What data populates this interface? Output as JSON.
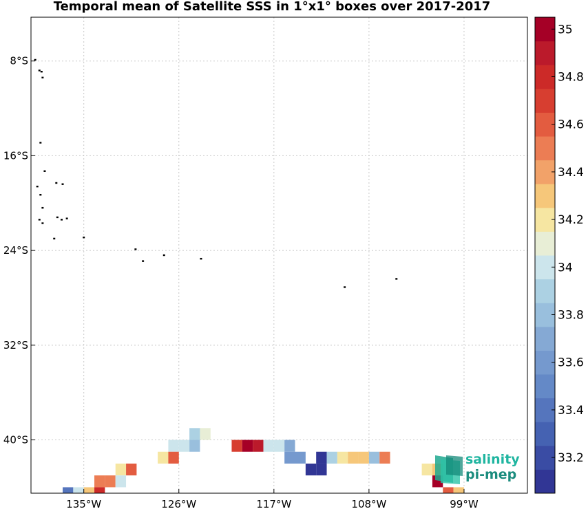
{
  "title": "Temporal mean of Satellite SSS in 1°x1° boxes over 2017-2017",
  "map": {
    "lon_range": [
      -140,
      -93
    ],
    "lat_range": [
      -44.5,
      -4.3
    ],
    "lon_ticks": [
      {
        "value": -135,
        "label": "135°W"
      },
      {
        "value": -126,
        "label": "126°W"
      },
      {
        "value": -117,
        "label": "117°W"
      },
      {
        "value": -108,
        "label": "108°W"
      },
      {
        "value": -99,
        "label": "99°W"
      }
    ],
    "lat_ticks": [
      {
        "value": -8,
        "label": "8°S"
      },
      {
        "value": -16,
        "label": "16°S"
      },
      {
        "value": -24,
        "label": "24°S"
      },
      {
        "value": -32,
        "label": "32°S"
      },
      {
        "value": -40,
        "label": "40°S"
      }
    ],
    "grid": "dotted",
    "islands": [
      [
        -139.6,
        -7.9
      ],
      [
        -139.2,
        -8.8
      ],
      [
        -139.0,
        -8.9
      ],
      [
        -138.9,
        -9.4
      ],
      [
        -139.1,
        -14.9
      ],
      [
        -138.7,
        -17.3
      ],
      [
        -137.6,
        -18.3
      ],
      [
        -137.0,
        -18.4
      ],
      [
        -139.4,
        -18.6
      ],
      [
        -139.1,
        -19.3
      ],
      [
        -138.9,
        -20.4
      ],
      [
        -139.2,
        -21.4
      ],
      [
        -138.9,
        -21.7
      ],
      [
        -137.5,
        -21.2
      ],
      [
        -137.1,
        -21.4
      ],
      [
        -136.6,
        -21.3
      ],
      [
        -137.8,
        -23.0
      ],
      [
        -135.0,
        -22.9
      ],
      [
        -130.1,
        -23.9
      ],
      [
        -129.4,
        -24.9
      ],
      [
        -127.4,
        -24.4
      ],
      [
        -123.9,
        -24.7
      ],
      [
        -110.3,
        -27.1
      ],
      [
        -105.4,
        -26.4
      ]
    ]
  },
  "chart_data": {
    "type": "heatmap",
    "title": "Temporal mean of Satellite SSS in 1°x1° boxes over 2017-2017",
    "xlabel": "",
    "ylabel": "",
    "cell_size_deg": 1,
    "value_range": [
      33.05,
      35.05
    ],
    "cells": [
      {
        "lon": -124.5,
        "lat": -39.5,
        "sss": 33.93
      },
      {
        "lon": -123.5,
        "lat": -39.5,
        "sss": 34.12
      },
      {
        "lon": -126.5,
        "lat": -40.5,
        "sss": 34.03
      },
      {
        "lon": -125.5,
        "lat": -40.5,
        "sss": 34.03
      },
      {
        "lon": -124.5,
        "lat": -40.5,
        "sss": 33.83
      },
      {
        "lon": -120.5,
        "lat": -40.5,
        "sss": 34.65
      },
      {
        "lon": -119.5,
        "lat": -40.5,
        "sss": 34.95
      },
      {
        "lon": -118.5,
        "lat": -40.5,
        "sss": 34.9
      },
      {
        "lon": -117.5,
        "lat": -40.5,
        "sss": 34.03
      },
      {
        "lon": -116.5,
        "lat": -40.5,
        "sss": 34.03
      },
      {
        "lon": -115.5,
        "lat": -40.5,
        "sss": 33.73
      },
      {
        "lon": -127.5,
        "lat": -41.5,
        "sss": 34.15
      },
      {
        "lon": -126.5,
        "lat": -41.5,
        "sss": 34.6
      },
      {
        "lon": -115.5,
        "lat": -41.5,
        "sss": 33.58
      },
      {
        "lon": -114.5,
        "lat": -41.5,
        "sss": 33.58
      },
      {
        "lon": -112.5,
        "lat": -41.5,
        "sss": 33.12
      },
      {
        "lon": -111.5,
        "lat": -41.5,
        "sss": 33.93
      },
      {
        "lon": -110.5,
        "lat": -41.5,
        "sss": 34.15
      },
      {
        "lon": -109.5,
        "lat": -41.5,
        "sss": 34.28
      },
      {
        "lon": -108.5,
        "lat": -41.5,
        "sss": 34.33
      },
      {
        "lon": -107.5,
        "lat": -41.5,
        "sss": 33.8
      },
      {
        "lon": -106.5,
        "lat": -41.5,
        "sss": 34.5
      },
      {
        "lon": -113.5,
        "lat": -42.5,
        "sss": 33.12
      },
      {
        "lon": -112.5,
        "lat": -42.5,
        "sss": 33.12
      },
      {
        "lon": -131.5,
        "lat": -42.5,
        "sss": 34.15
      },
      {
        "lon": -130.5,
        "lat": -42.5,
        "sss": 34.6
      },
      {
        "lon": -102.5,
        "lat": -42.5,
        "sss": 34.15
      },
      {
        "lon": -101.5,
        "lat": -42.5,
        "sss": 34.33
      },
      {
        "lon": -133.5,
        "lat": -43.5,
        "sss": 34.5
      },
      {
        "lon": -132.5,
        "lat": -43.5,
        "sss": 34.5
      },
      {
        "lon": -131.5,
        "lat": -43.5,
        "sss": 33.97
      },
      {
        "lon": -101.5,
        "lat": -43.5,
        "sss": 35.02
      },
      {
        "lon": -136.5,
        "lat": -44.5,
        "sss": 33.4
      },
      {
        "lon": -135.5,
        "lat": -44.5,
        "sss": 33.97
      },
      {
        "lon": -134.5,
        "lat": -44.5,
        "sss": 34.33
      },
      {
        "lon": -133.5,
        "lat": -44.5,
        "sss": 34.75
      },
      {
        "lon": -100.5,
        "lat": -44.5,
        "sss": 34.55
      },
      {
        "lon": -99.5,
        "lat": -44.5,
        "sss": 34.33
      }
    ]
  },
  "colorbar": {
    "range": [
      33.05,
      35.05
    ],
    "colors": [
      "#313695",
      "#3a4ca4",
      "#4562b2",
      "#5575bd",
      "#6489c7",
      "#7599ce",
      "#85a9d4",
      "#99bfdd",
      "#acd1e3",
      "#cce5ec",
      "#e8eed6",
      "#f6e6a2",
      "#f6c77a",
      "#f2a269",
      "#ec7d54",
      "#e35c40",
      "#d73e30",
      "#cc2a28",
      "#bb1a2b",
      "#a50026"
    ],
    "tick_labels": [
      {
        "value": 33.2,
        "label": "33.2"
      },
      {
        "value": 33.4,
        "label": "33.4"
      },
      {
        "value": 33.6,
        "label": "33.6"
      },
      {
        "value": 33.8,
        "label": "33.8"
      },
      {
        "value": 34.0,
        "label": "34"
      },
      {
        "value": 34.2,
        "label": "34.2"
      },
      {
        "value": 34.4,
        "label": "34.4"
      },
      {
        "value": 34.6,
        "label": "34.6"
      },
      {
        "value": 34.8,
        "label": "34.8"
      },
      {
        "value": 35.0,
        "label": "35"
      }
    ]
  },
  "logo": {
    "line1": "salinity",
    "line2": "pi-mep"
  }
}
